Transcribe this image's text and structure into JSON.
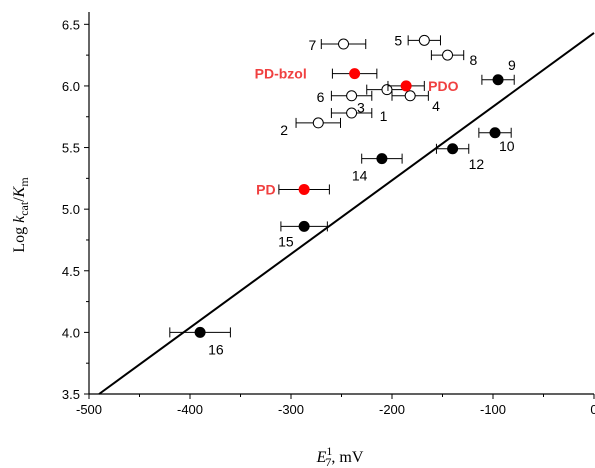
{
  "chart_data": {
    "type": "scatter",
    "xlabel": {
      "main": "E",
      "sup": "1",
      "sub": "7",
      "rest": ", mV"
    },
    "ylabel": {
      "pre": "Log ",
      "k": "k",
      "cat": "cat",
      "slash": "/",
      "K": "K",
      "m": "m"
    },
    "xlim": [
      -500,
      0
    ],
    "ylim": [
      3.5,
      6.6
    ],
    "xticks": [
      -500,
      -400,
      -300,
      -200,
      -100,
      0
    ],
    "xtick_labels": [
      "-500",
      "-400",
      "-300",
      "-200",
      "-100",
      "0"
    ],
    "yticks": [
      3.5,
      4.0,
      4.5,
      5.0,
      5.5,
      6.0,
      6.5
    ],
    "ytick_labels": [
      "3.5",
      "4.0",
      "4.5",
      "5.0",
      "5.5",
      "6.0",
      "6.5"
    ],
    "colors": {
      "open": "#ffffff",
      "filled": "#000000",
      "red": "#ff0000",
      "red_text": "#f04040"
    },
    "fit_line": {
      "x": [
        -490,
        0
      ],
      "y": [
        3.5,
        6.43
      ]
    },
    "points": [
      {
        "label": "1",
        "x": -240,
        "y": 5.78,
        "xerr": 20,
        "style": "open",
        "lx": 28,
        "ly": 8
      },
      {
        "label": "2",
        "x": -273,
        "y": 5.7,
        "xerr": 22,
        "style": "open",
        "lx": -38,
        "ly": 12
      },
      {
        "label": "3",
        "x": -205,
        "y": 5.97,
        "xerr": 20,
        "style": "open",
        "lx": -30,
        "ly": 23
      },
      {
        "label": "4",
        "x": -182,
        "y": 5.92,
        "xerr": 18,
        "style": "open",
        "lx": 22,
        "ly": 15
      },
      {
        "label": "5",
        "x": -168,
        "y": 6.37,
        "xerr": 16,
        "style": "open",
        "lx": -30,
        "ly": 5
      },
      {
        "label": "6",
        "x": -240,
        "y": 5.92,
        "xerr": 20,
        "style": "open",
        "lx": -35,
        "ly": 6
      },
      {
        "label": "7",
        "x": -248,
        "y": 6.34,
        "xerr": 22,
        "style": "open",
        "lx": -35,
        "ly": 6
      },
      {
        "label": "8",
        "x": -145,
        "y": 6.25,
        "xerr": 16,
        "style": "open",
        "lx": 22,
        "ly": 10
      },
      {
        "label": "9",
        "x": -95,
        "y": 6.05,
        "xerr": 16,
        "style": "filled",
        "lx": 10,
        "ly": -10
      },
      {
        "label": "10",
        "x": -98,
        "y": 5.62,
        "xerr": 16,
        "style": "filled",
        "lx": 4,
        "ly": 18
      },
      {
        "label": "12",
        "x": -140,
        "y": 5.49,
        "xerr": 16,
        "style": "filled",
        "lx": 16,
        "ly": 20
      },
      {
        "label": "14",
        "x": -210,
        "y": 5.41,
        "xerr": 20,
        "style": "filled",
        "lx": -30,
        "ly": 22
      },
      {
        "label": "15",
        "x": -287,
        "y": 4.86,
        "xerr": 23,
        "style": "filled",
        "lx": -26,
        "ly": 20
      },
      {
        "label": "16",
        "x": -390,
        "y": 4.0,
        "xerr": 30,
        "style": "filled",
        "lx": 8,
        "ly": 22
      },
      {
        "label": "PD-bzol",
        "x": -237,
        "y": 6.1,
        "xerr": 22,
        "style": "red",
        "lx": -100,
        "ly": 5
      },
      {
        "label": "PDO",
        "x": -186,
        "y": 6.0,
        "xerr": 18,
        "style": "red",
        "lx": 22,
        "ly": 5
      },
      {
        "label": "PD",
        "x": -287,
        "y": 5.16,
        "xerr": 25,
        "style": "red",
        "lx": -48,
        "ly": 5
      }
    ]
  }
}
